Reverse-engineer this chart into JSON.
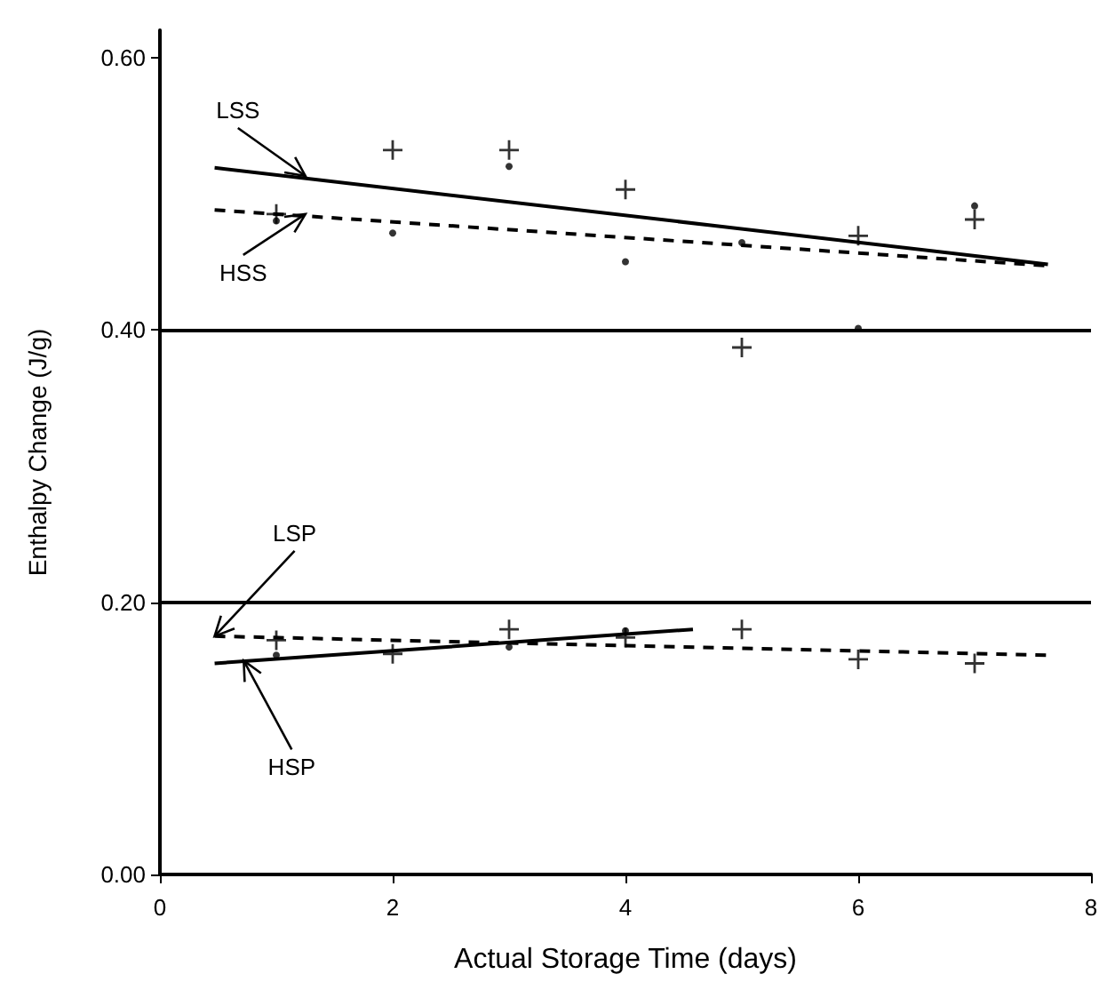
{
  "chart_data": {
    "type": "scatter",
    "xlabel": "Actual Storage Time (days)",
    "ylabel": "Enthalpy Change (J/g)",
    "xlim": [
      0,
      8
    ],
    "xticks": [
      0,
      2,
      4,
      6,
      8
    ],
    "ylim": [
      0,
      0.62
    ],
    "yticks": [
      {
        "value": 0,
        "label": "0.00"
      },
      {
        "value": 0.2,
        "label": "0.20"
      },
      {
        "value": 0.4,
        "label": "0.40"
      },
      {
        "value": 0.6,
        "label": "0.60"
      }
    ],
    "grid": false,
    "series": [
      {
        "marker": "cross",
        "color": "#000000",
        "x": [
          1,
          2,
          3,
          4,
          5,
          6,
          7
        ],
        "values": [
          0.485,
          0.532,
          0.532,
          0.503,
          0.387,
          0.469,
          0.481
        ]
      },
      {
        "marker": "circle",
        "color": "#000000",
        "x": [
          1,
          2,
          3,
          4,
          5,
          6,
          7
        ],
        "values": [
          0.48,
          0.471,
          0.52,
          0.45,
          0.464,
          0.401,
          0.491
        ]
      },
      {
        "marker": "cross",
        "color": "#000000",
        "x": [
          1,
          2,
          3,
          4,
          5,
          6,
          7
        ],
        "values": [
          0.172,
          0.162,
          0.18,
          0.174,
          0.18,
          0.158,
          0.155
        ]
      },
      {
        "marker": "circle",
        "color": "#000000",
        "x": [
          1,
          3,
          4
        ],
        "values": [
          0.161,
          0.167,
          0.179
        ]
      },
      {
        "type": "line",
        "line_style": "solid",
        "marker": "none",
        "color": "#000000",
        "x": [
          0.47,
          7.63
        ],
        "values": [
          0.519,
          0.448
        ]
      },
      {
        "type": "line",
        "line_style": "dashed",
        "marker": "none",
        "color": "#000000",
        "x": [
          0.47,
          7.63
        ],
        "values": [
          0.488,
          0.447
        ]
      },
      {
        "type": "line",
        "line_style": "dashed",
        "marker": "none",
        "color": "#000000",
        "x": [
          0.47,
          7.63
        ],
        "values": [
          0.175,
          0.161
        ]
      },
      {
        "type": "line",
        "line_style": "solid",
        "marker": "none",
        "color": "#000000",
        "x": [
          0.47,
          4.58
        ],
        "values": [
          0.155,
          0.18
        ]
      }
    ],
    "ref_lines": [
      {
        "axis": "y",
        "value": 0.2,
        "color": "#000000"
      },
      {
        "axis": "y",
        "value": 0.4,
        "color": "#000000"
      }
    ],
    "annotations": [
      {
        "text": "LSS",
        "x": 1.25,
        "y": 0.513
      },
      {
        "text": "HSS",
        "x": 1.25,
        "y": 0.485
      },
      {
        "text": "LSP",
        "x": 0.47,
        "y": 0.175
      },
      {
        "text": "HSP",
        "x": 0.72,
        "y": 0.157
      }
    ]
  }
}
